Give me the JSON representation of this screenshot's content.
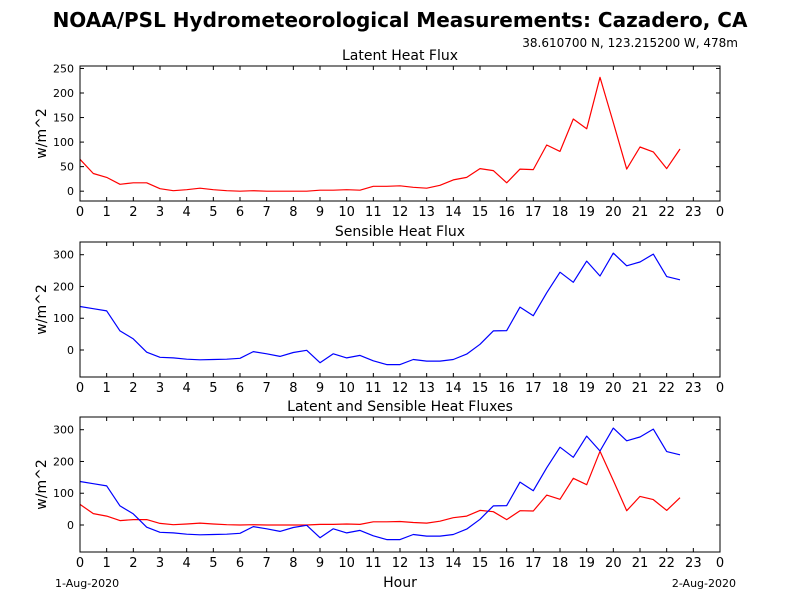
{
  "header": {
    "title": "NOAA/PSL Hydrometeorological Measurements: Cazadero, CA",
    "location": "38.610700 N, 123.215200 W, 478m"
  },
  "footer": {
    "start_date": "1-Aug-2020",
    "end_date": "2-Aug-2020",
    "xlabel": "Hour"
  },
  "colors": {
    "latent": "#ff0000",
    "sensible": "#0000ff"
  },
  "chart_data": [
    {
      "type": "line",
      "title": "Latent Heat Flux",
      "ylabel": "w/m^2",
      "xlim": [
        0,
        24
      ],
      "ylim": [
        -20,
        255
      ],
      "yticks": [
        0,
        50,
        100,
        150,
        200,
        250
      ],
      "xticks": [
        0,
        1,
        2,
        3,
        4,
        5,
        6,
        7,
        8,
        9,
        10,
        11,
        12,
        13,
        14,
        15,
        16,
        17,
        18,
        19,
        20,
        21,
        22,
        23,
        24
      ],
      "xtick_labels": [
        "0",
        "1",
        "2",
        "3",
        "4",
        "5",
        "6",
        "7",
        "8",
        "9",
        "10",
        "11",
        "12",
        "13",
        "14",
        "15",
        "16",
        "17",
        "18",
        "19",
        "20",
        "21",
        "22",
        "23",
        "0"
      ],
      "x": [
        0,
        0.5,
        1,
        1.5,
        2,
        2.5,
        3,
        3.5,
        4,
        4.5,
        5,
        5.5,
        6,
        6.5,
        7,
        7.5,
        8,
        8.5,
        9,
        9.5,
        10,
        10.5,
        11,
        11.5,
        12,
        12.5,
        13,
        13.5,
        14,
        14.5,
        15,
        15.5,
        16,
        16.5,
        17,
        17.5,
        18,
        18.5,
        19,
        19.5,
        20,
        20.5,
        21,
        21.5,
        22,
        22.5
      ],
      "series": [
        {
          "color": "#ff0000",
          "values": [
            65,
            36,
            28,
            14,
            17,
            17,
            5,
            1,
            3,
            6,
            3,
            1,
            0,
            1,
            0,
            0,
            0,
            0,
            2,
            2,
            3,
            2,
            10,
            10,
            11,
            8,
            6,
            12,
            23,
            28,
            46,
            42,
            17,
            45,
            44,
            94,
            81,
            147,
            127,
            232,
            140,
            45,
            90,
            80,
            46,
            86
          ]
        }
      ]
    },
    {
      "type": "line",
      "title": "Sensible Heat Flux",
      "ylabel": "w/m^2",
      "xlim": [
        0,
        24
      ],
      "ylim": [
        -85,
        340
      ],
      "yticks": [
        0,
        100,
        200,
        300
      ],
      "xticks": [
        0,
        1,
        2,
        3,
        4,
        5,
        6,
        7,
        8,
        9,
        10,
        11,
        12,
        13,
        14,
        15,
        16,
        17,
        18,
        19,
        20,
        21,
        22,
        23,
        24
      ],
      "xtick_labels": [
        "0",
        "1",
        "2",
        "3",
        "4",
        "5",
        "6",
        "7",
        "8",
        "9",
        "10",
        "11",
        "12",
        "13",
        "14",
        "15",
        "16",
        "17",
        "18",
        "19",
        "20",
        "21",
        "22",
        "23",
        "0"
      ],
      "x": [
        0,
        0.5,
        1,
        1.5,
        2,
        2.5,
        3,
        3.5,
        4,
        4.5,
        5,
        5.5,
        6,
        6.5,
        7,
        7.5,
        8,
        8.5,
        9,
        9.5,
        10,
        10.5,
        11,
        11.5,
        12,
        12.5,
        13,
        13.5,
        14,
        14.5,
        15,
        15.5,
        16,
        16.5,
        17,
        17.5,
        18,
        18.5,
        19,
        19.5,
        20,
        20.5,
        21,
        21.5,
        22,
        22.5
      ],
      "series": [
        {
          "color": "#0000ff",
          "values": [
            137,
            130,
            123,
            60,
            35,
            -7,
            -23,
            -25,
            -29,
            -31,
            -30,
            -29,
            -26,
            -5,
            -12,
            -20,
            -8,
            -1,
            -40,
            -12,
            -25,
            -17,
            -34,
            -46,
            -46,
            -30,
            -35,
            -35,
            -30,
            -13,
            18,
            60,
            61,
            135,
            108,
            180,
            245,
            213,
            280,
            233,
            305,
            265,
            277,
            302,
            231,
            221
          ]
        }
      ]
    },
    {
      "type": "line",
      "title": "Latent and Sensible Heat Fluxes",
      "ylabel": "w/m^2",
      "xlabel": "Hour",
      "xlim": [
        0,
        24
      ],
      "ylim": [
        -85,
        340
      ],
      "yticks": [
        0,
        100,
        200,
        300
      ],
      "xticks": [
        0,
        1,
        2,
        3,
        4,
        5,
        6,
        7,
        8,
        9,
        10,
        11,
        12,
        13,
        14,
        15,
        16,
        17,
        18,
        19,
        20,
        21,
        22,
        23,
        24
      ],
      "xtick_labels": [
        "0",
        "1",
        "2",
        "3",
        "4",
        "5",
        "6",
        "7",
        "8",
        "9",
        "10",
        "11",
        "12",
        "13",
        "14",
        "15",
        "16",
        "17",
        "18",
        "19",
        "20",
        "21",
        "22",
        "23",
        "0"
      ],
      "x": [
        0,
        0.5,
        1,
        1.5,
        2,
        2.5,
        3,
        3.5,
        4,
        4.5,
        5,
        5.5,
        6,
        6.5,
        7,
        7.5,
        8,
        8.5,
        9,
        9.5,
        10,
        10.5,
        11,
        11.5,
        12,
        12.5,
        13,
        13.5,
        14,
        14.5,
        15,
        15.5,
        16,
        16.5,
        17,
        17.5,
        18,
        18.5,
        19,
        19.5,
        20,
        20.5,
        21,
        21.5,
        22,
        22.5
      ],
      "series": [
        {
          "color": "#ff0000",
          "values": [
            65,
            36,
            28,
            14,
            17,
            17,
            5,
            1,
            3,
            6,
            3,
            1,
            0,
            1,
            0,
            0,
            0,
            0,
            2,
            2,
            3,
            2,
            10,
            10,
            11,
            8,
            6,
            12,
            23,
            28,
            46,
            42,
            17,
            45,
            44,
            94,
            81,
            147,
            127,
            232,
            140,
            45,
            90,
            80,
            46,
            86
          ]
        },
        {
          "color": "#0000ff",
          "values": [
            137,
            130,
            123,
            60,
            35,
            -7,
            -23,
            -25,
            -29,
            -31,
            -30,
            -29,
            -26,
            -5,
            -12,
            -20,
            -8,
            -1,
            -40,
            -12,
            -25,
            -17,
            -34,
            -46,
            -46,
            -30,
            -35,
            -35,
            -30,
            -13,
            18,
            60,
            61,
            135,
            108,
            180,
            245,
            213,
            280,
            233,
            305,
            265,
            277,
            302,
            231,
            221
          ]
        }
      ]
    }
  ]
}
